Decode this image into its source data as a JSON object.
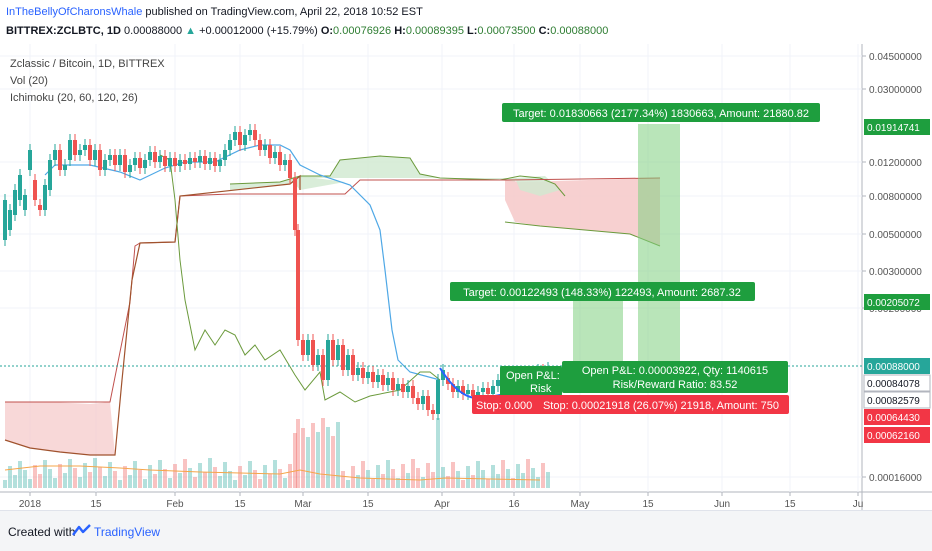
{
  "header": {
    "author": "InTheBellyOfCharonsWhale",
    "published": " published on TradingView.com, April 22, 2018 10:52 EST",
    "symbol": "BITTREX:ZCLBTC, 1D",
    "last": "0.00088000",
    "change": "+0.00012000 (+15.79%)",
    "open": "0.00076926",
    "high": "0.00089395",
    "low": "0.00073500",
    "close": "0.00088000",
    "o_label": "O:",
    "h_label": "H:",
    "l_label": "L:",
    "c_label": "C:"
  },
  "legend": {
    "title": "Zclassic / Bitcoin, 1D, BITTREX",
    "vol": "Vol (20)",
    "ichimoku": "Ichimoku (20, 60, 120, 26)"
  },
  "colors": {
    "up": "#26a69a",
    "down": "#ef5350",
    "target": "#1e9e3e",
    "stop": "#f23645",
    "tenkan": "#4fa8e6",
    "kijun": "#a0522d",
    "chikou": "#6b9a3c"
  },
  "chart_data": {
    "type": "candlestick",
    "x_ticks": [
      "2018",
      "15",
      "Feb",
      "15",
      "Mar",
      "15",
      "Apr",
      "16",
      "May",
      "15",
      "Jun",
      "15",
      "Ju"
    ],
    "y_ticks": [
      "0.04500000",
      "0.03000000",
      "0.01200000",
      "0.00800000",
      "0.00500000",
      "0.00300000",
      "0.00200000",
      "0.00016000"
    ],
    "price_labels": [
      {
        "value": "0.01914741",
        "color": "#1e9e3e"
      },
      {
        "value": "0.00205072",
        "color": "#1e9e3e"
      },
      {
        "value": "0.00088000",
        "color": "#26a69a"
      },
      {
        "value": "0.00084078",
        "color": "#131722"
      },
      {
        "value": "0.00082579",
        "color": "#131722"
      },
      {
        "value": "0.00064430",
        "color": "#f23645"
      },
      {
        "value": "0.00062160",
        "color": "#f23645"
      }
    ],
    "positions": {
      "long_target_high": "Target: 0.01830663 (2177.34%) 1830663, Amount: 21880.82",
      "long_target_low": "Target: 0.00122493 (148.33%) 122493, Amount: 2687.32",
      "open_pl_short": "Open P&L:",
      "open_pl": "Open P&L: 0.00003922, Qty: 1140615",
      "risk_reward": "Risk/Reward Ratio: 83.52",
      "risk_short": "Risk",
      "stop_short": "Stop: 0.000",
      "stop": "Stop: 0.00021918 (26.07%) 21918, Amount: 750"
    }
  },
  "footer": {
    "created_with": "Created with",
    "brand": "TradingView"
  }
}
